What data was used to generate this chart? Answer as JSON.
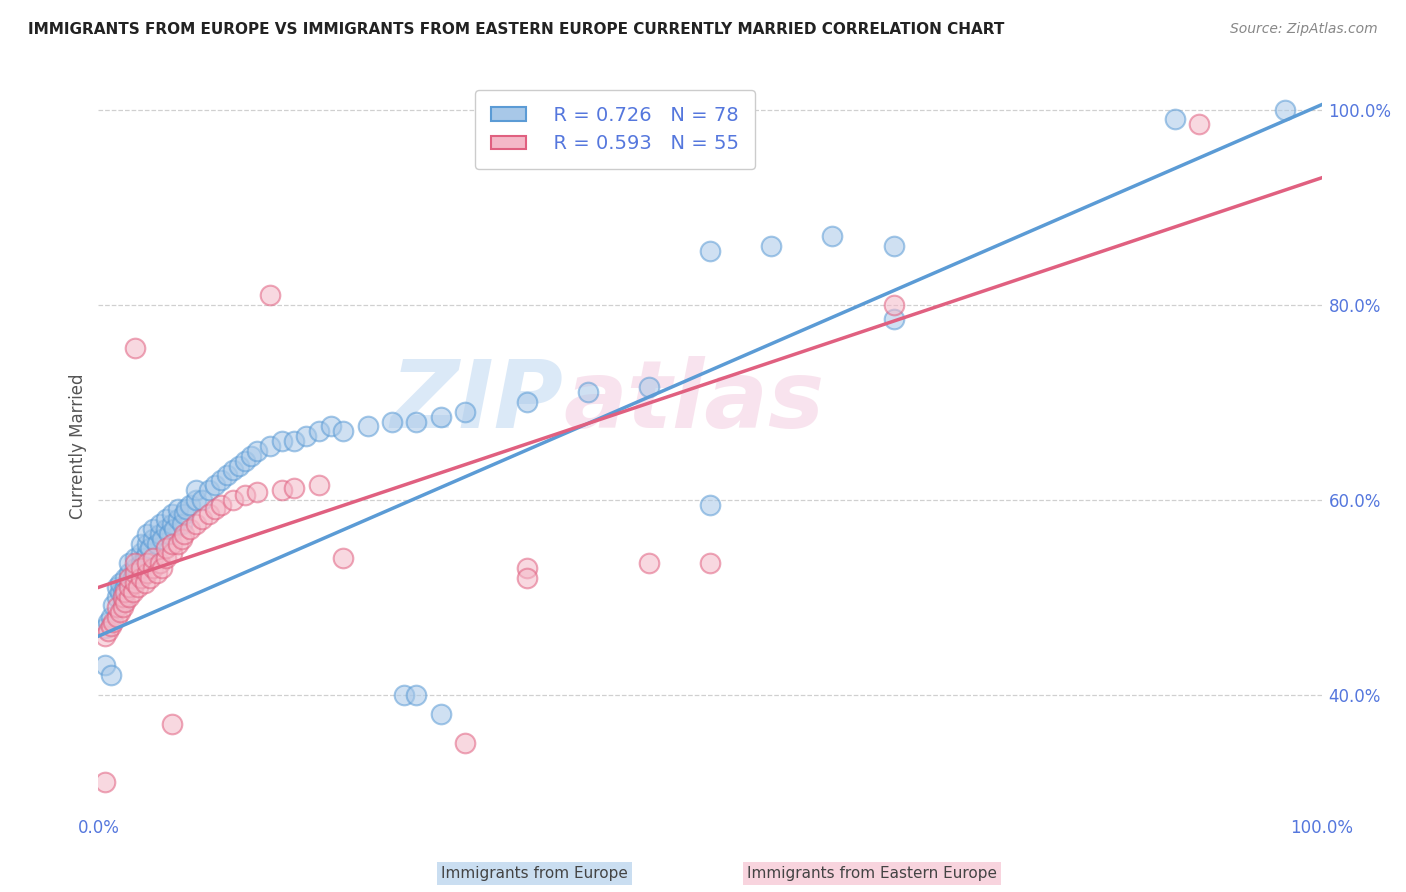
{
  "title": "IMMIGRANTS FROM EUROPE VS IMMIGRANTS FROM EASTERN EUROPE CURRENTLY MARRIED CORRELATION CHART",
  "source": "Source: ZipAtlas.com",
  "ylabel": "Currently Married",
  "legend1_r": "0.726",
  "legend1_n": "78",
  "legend2_r": "0.593",
  "legend2_n": "55",
  "bottom_label1": "Immigrants from Europe",
  "bottom_label2": "Immigrants from Eastern Europe",
  "blue_fill": "#a8c8e8",
  "blue_edge": "#5b9bd5",
  "pink_fill": "#f4b8c8",
  "pink_edge": "#e06080",
  "line_blue": "#5b9bd5",
  "line_pink": "#e06080",
  "axis_tick_color": "#5577dd",
  "grid_color": "#d0d0d0",
  "title_color": "#222222",
  "source_color": "#888888",
  "ylabel_color": "#555555",
  "watermark_zip_color": "#cce0f5",
  "watermark_atlas_color": "#f5d5e5",
  "scatter_blue": [
    [
      0.005,
      0.468
    ],
    [
      0.008,
      0.475
    ],
    [
      0.01,
      0.48
    ],
    [
      0.012,
      0.492
    ],
    [
      0.015,
      0.5
    ],
    [
      0.015,
      0.51
    ],
    [
      0.018,
      0.505
    ],
    [
      0.018,
      0.515
    ],
    [
      0.02,
      0.495
    ],
    [
      0.02,
      0.505
    ],
    [
      0.022,
      0.51
    ],
    [
      0.022,
      0.52
    ],
    [
      0.025,
      0.515
    ],
    [
      0.025,
      0.525
    ],
    [
      0.025,
      0.535
    ],
    [
      0.028,
      0.52
    ],
    [
      0.03,
      0.53
    ],
    [
      0.03,
      0.54
    ],
    [
      0.032,
      0.525
    ],
    [
      0.035,
      0.535
    ],
    [
      0.035,
      0.545
    ],
    [
      0.035,
      0.555
    ],
    [
      0.038,
      0.54
    ],
    [
      0.04,
      0.545
    ],
    [
      0.04,
      0.555
    ],
    [
      0.04,
      0.565
    ],
    [
      0.042,
      0.55
    ],
    [
      0.045,
      0.56
    ],
    [
      0.045,
      0.57
    ],
    [
      0.048,
      0.555
    ],
    [
      0.05,
      0.565
    ],
    [
      0.05,
      0.575
    ],
    [
      0.052,
      0.56
    ],
    [
      0.055,
      0.57
    ],
    [
      0.055,
      0.58
    ],
    [
      0.058,
      0.565
    ],
    [
      0.06,
      0.575
    ],
    [
      0.06,
      0.585
    ],
    [
      0.062,
      0.57
    ],
    [
      0.065,
      0.58
    ],
    [
      0.065,
      0.59
    ],
    [
      0.068,
      0.575
    ],
    [
      0.07,
      0.585
    ],
    [
      0.072,
      0.59
    ],
    [
      0.075,
      0.595
    ],
    [
      0.08,
      0.6
    ],
    [
      0.08,
      0.61
    ],
    [
      0.085,
      0.6
    ],
    [
      0.09,
      0.61
    ],
    [
      0.095,
      0.615
    ],
    [
      0.1,
      0.62
    ],
    [
      0.105,
      0.625
    ],
    [
      0.11,
      0.63
    ],
    [
      0.115,
      0.635
    ],
    [
      0.12,
      0.64
    ],
    [
      0.125,
      0.645
    ],
    [
      0.13,
      0.65
    ],
    [
      0.14,
      0.655
    ],
    [
      0.15,
      0.66
    ],
    [
      0.16,
      0.66
    ],
    [
      0.17,
      0.665
    ],
    [
      0.18,
      0.67
    ],
    [
      0.19,
      0.675
    ],
    [
      0.2,
      0.67
    ],
    [
      0.22,
      0.675
    ],
    [
      0.24,
      0.68
    ],
    [
      0.26,
      0.68
    ],
    [
      0.28,
      0.685
    ],
    [
      0.3,
      0.69
    ],
    [
      0.35,
      0.7
    ],
    [
      0.4,
      0.71
    ],
    [
      0.45,
      0.715
    ],
    [
      0.5,
      0.855
    ],
    [
      0.55,
      0.86
    ],
    [
      0.6,
      0.87
    ],
    [
      0.65,
      0.86
    ],
    [
      0.88,
      0.99
    ],
    [
      0.97,
      1.0
    ]
  ],
  "scatter_pink": [
    [
      0.005,
      0.46
    ],
    [
      0.008,
      0.465
    ],
    [
      0.01,
      0.47
    ],
    [
      0.012,
      0.475
    ],
    [
      0.015,
      0.48
    ],
    [
      0.015,
      0.49
    ],
    [
      0.018,
      0.485
    ],
    [
      0.02,
      0.49
    ],
    [
      0.02,
      0.5
    ],
    [
      0.022,
      0.495
    ],
    [
      0.022,
      0.505
    ],
    [
      0.025,
      0.5
    ],
    [
      0.025,
      0.51
    ],
    [
      0.025,
      0.52
    ],
    [
      0.028,
      0.505
    ],
    [
      0.03,
      0.515
    ],
    [
      0.03,
      0.525
    ],
    [
      0.03,
      0.535
    ],
    [
      0.032,
      0.51
    ],
    [
      0.035,
      0.52
    ],
    [
      0.035,
      0.53
    ],
    [
      0.038,
      0.515
    ],
    [
      0.04,
      0.525
    ],
    [
      0.04,
      0.535
    ],
    [
      0.042,
      0.52
    ],
    [
      0.045,
      0.53
    ],
    [
      0.045,
      0.54
    ],
    [
      0.048,
      0.525
    ],
    [
      0.05,
      0.535
    ],
    [
      0.052,
      0.53
    ],
    [
      0.055,
      0.54
    ],
    [
      0.055,
      0.55
    ],
    [
      0.06,
      0.545
    ],
    [
      0.06,
      0.555
    ],
    [
      0.065,
      0.555
    ],
    [
      0.068,
      0.56
    ],
    [
      0.07,
      0.565
    ],
    [
      0.075,
      0.57
    ],
    [
      0.08,
      0.575
    ],
    [
      0.085,
      0.58
    ],
    [
      0.09,
      0.585
    ],
    [
      0.095,
      0.59
    ],
    [
      0.1,
      0.595
    ],
    [
      0.11,
      0.6
    ],
    [
      0.12,
      0.605
    ],
    [
      0.13,
      0.608
    ],
    [
      0.14,
      0.81
    ],
    [
      0.15,
      0.61
    ],
    [
      0.16,
      0.612
    ],
    [
      0.18,
      0.615
    ],
    [
      0.2,
      0.54
    ],
    [
      0.3,
      0.35
    ],
    [
      0.35,
      0.53
    ],
    [
      0.45,
      0.535
    ],
    [
      0.65,
      0.8
    ],
    [
      0.9,
      0.985
    ]
  ],
  "blue_outliers": [
    [
      0.005,
      0.43
    ],
    [
      0.01,
      0.42
    ],
    [
      0.25,
      0.4
    ],
    [
      0.26,
      0.4
    ],
    [
      0.28,
      0.38
    ],
    [
      0.5,
      0.595
    ],
    [
      0.65,
      0.785
    ]
  ],
  "pink_outliers": [
    [
      0.005,
      0.31
    ],
    [
      0.03,
      0.755
    ],
    [
      0.06,
      0.37
    ],
    [
      0.35,
      0.52
    ],
    [
      0.5,
      0.535
    ]
  ],
  "xlim": [
    0.0,
    1.0
  ],
  "ylim": [
    0.28,
    1.03
  ],
  "yticks": [
    0.4,
    0.6,
    0.8,
    1.0
  ],
  "ytick_labels": [
    "40.0%",
    "60.0%",
    "80.0%",
    "100.0%"
  ],
  "xtick_left_label": "0.0%",
  "xtick_right_label": "100.0%"
}
